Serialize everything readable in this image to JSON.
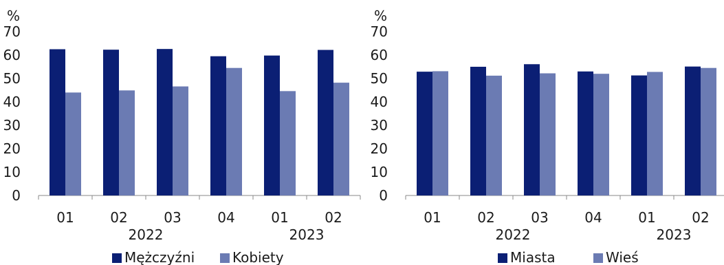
{
  "chart_data": [
    {
      "type": "bar",
      "ylabel": "%",
      "ylim": [
        0,
        70
      ],
      "yticks": [
        0,
        10,
        20,
        30,
        40,
        50,
        60,
        70
      ],
      "categories": [
        "01",
        "02",
        "03",
        "04",
        "01",
        "02"
      ],
      "year_labels": [
        "2022",
        "2023"
      ],
      "series": [
        {
          "name": "Mężczyźni",
          "color": "#0b1f74",
          "values": [
            62.5,
            62.3,
            62.6,
            59.5,
            59.8,
            62.2
          ]
        },
        {
          "name": "Kobiety",
          "color": "#6b7bb3",
          "values": [
            44.0,
            44.9,
            46.6,
            54.5,
            44.6,
            48.2
          ]
        }
      ],
      "grid": false,
      "legend": "bottom"
    },
    {
      "type": "bar",
      "ylabel": "%",
      "ylim": [
        0,
        70
      ],
      "yticks": [
        0,
        10,
        20,
        30,
        40,
        50,
        60,
        70
      ],
      "categories": [
        "01",
        "02",
        "03",
        "04",
        "01",
        "02"
      ],
      "year_labels": [
        "2022",
        "2023"
      ],
      "series": [
        {
          "name": "Miasta",
          "color": "#0b1f74",
          "values": [
            52.9,
            55.0,
            56.1,
            53.0,
            51.3,
            55.1
          ]
        },
        {
          "name": "Wieś",
          "color": "#6b7bb3",
          "values": [
            53.1,
            51.2,
            52.2,
            52.0,
            52.8,
            54.5
          ]
        }
      ],
      "grid": false,
      "legend": "bottom"
    }
  ]
}
